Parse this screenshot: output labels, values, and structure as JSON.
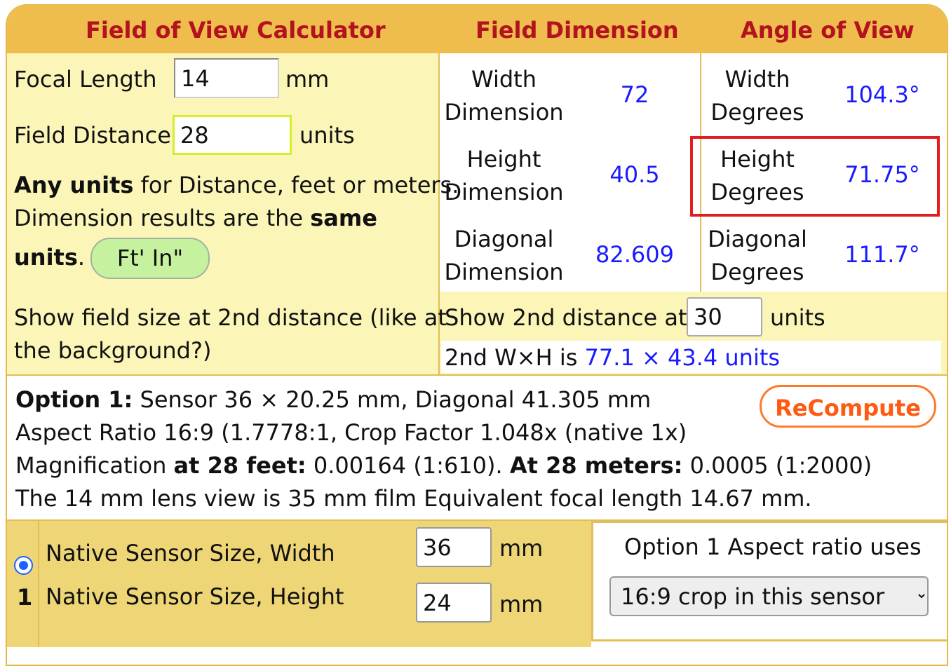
{
  "header": {
    "calculator_title": "Field of View Calculator",
    "field_dimension_title": "Field Dimension",
    "angle_of_view_title": "Angle of View"
  },
  "inputs": {
    "focal_length_label": "Focal Length",
    "focal_length_value": "14",
    "focal_length_unit": "mm",
    "field_distance_label": "Field Distance",
    "field_distance_value": "28",
    "field_distance_unit": "units"
  },
  "notes": {
    "any_units_bold": "Any units",
    "any_units_rest": " for Distance, feet or meters.",
    "dimension_results": "Dimension results are the ",
    "same_bold": "same",
    "units_bold": "units",
    "period": ".",
    "ftin_button": "Ft' In\""
  },
  "field_dimension": {
    "width_label_1": "Width",
    "width_label_2": "Dimension",
    "width_value": "72",
    "height_label_1": "Height",
    "height_label_2": "Dimension",
    "height_value": "40.5",
    "diagonal_label_1": "Diagonal",
    "diagonal_label_2": "Dimension",
    "diagonal_value": "82.609"
  },
  "angle_of_view": {
    "width_label_1": "Width",
    "width_label_2": "Degrees",
    "width_value": "104.3°",
    "height_label_1": "Height",
    "height_label_2": "Degrees",
    "height_value": "71.75°",
    "diagonal_label_1": "Diagonal",
    "diagonal_label_2": "Degrees",
    "diagonal_value": "111.7°"
  },
  "second_distance": {
    "prompt_line_1": "Show field size at 2nd distance (like at",
    "prompt_line_2": "the background?)",
    "show_label": "Show 2nd distance at",
    "value": "30",
    "unit": "units",
    "result_label": "2nd W×H is ",
    "result_value": "77.1 × 43.4 units"
  },
  "option1": {
    "label_bold": "Option 1:",
    "sensor_text": " Sensor 36 × 20.25 mm, Diagonal 41.305 mm",
    "aspect_text": "Aspect Ratio 16:9 (1.7778:1, Crop Factor 1.048x (native 1x)",
    "magnification_prefix": "Magnification ",
    "at_28_feet_bold": "at 28 feet:",
    "feet_value": " 0.00164 (1:610). ",
    "at_28_meters_bold": "At 28 meters:",
    "meters_value": " 0.0005 (1:2000)",
    "equivalent_text": "The 14 mm lens view is 35 mm film Equivalent focal length 14.67 mm.",
    "recompute_button": "ReCompute"
  },
  "sensor": {
    "row_number": "1",
    "width_label": "Native Sensor Size, Width",
    "width_value": "36",
    "width_unit": "mm",
    "height_label": "Native Sensor Size, Height",
    "height_value": "24",
    "height_unit": "mm",
    "aspect_uses_label": "Option 1 Aspect ratio uses",
    "aspect_select_value": "16:9 crop in this sensor"
  },
  "colors": {
    "header_bg": "#eebd4d",
    "header_text": "#b3121f",
    "panel_yellow": "#fbf6b8",
    "result_blue": "#1a1aff",
    "highlight_red": "#e11d1d",
    "recompute_orange": "#ff5a12",
    "ftin_green": "#c6f2a0"
  }
}
